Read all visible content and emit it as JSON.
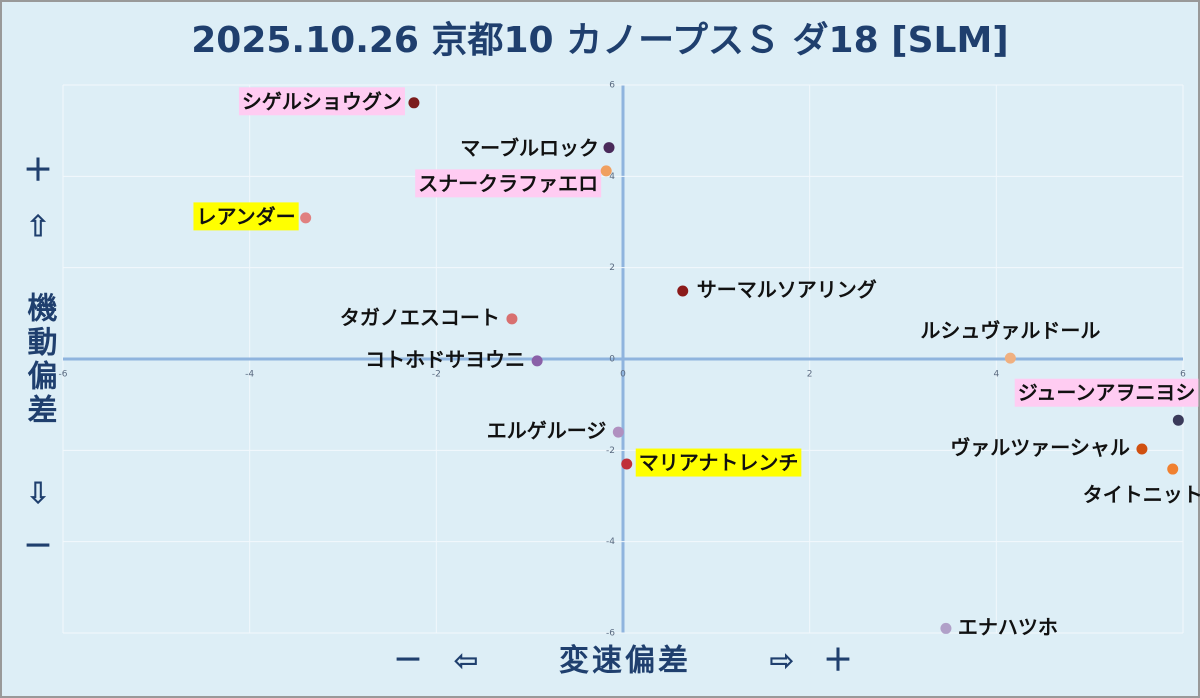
{
  "chart_data": {
    "type": "scatter",
    "title": "2025.10.26 京都10 カノープスＳ ダ18 [SLM]",
    "xlabel": "変速偏差",
    "ylabel": "機動偏差",
    "x_minus_sign": "－",
    "x_left_arrow": "⇦",
    "x_right_arrow": "⇨",
    "x_plus_sign": "＋",
    "y_plus_sign": "＋",
    "y_up_arrow": "⇧",
    "y_down_arrow": "⇩",
    "y_minus_sign": "－",
    "labels": [
      "シゲルショウグン",
      "マーブルロック",
      "スナークラファエロ",
      "レアンダー",
      "サーマルソアリング",
      "タガノエスコート",
      "ルシュヴァルドール",
      "コトホドサヨウニ",
      "ジューンアヲニヨシ",
      "エルゲルージ",
      "ヴァルツァーシャル",
      "マリアナトレンチ",
      "タイトニット",
      "エナハツホ"
    ],
    "x": [
      -2.24,
      -0.15,
      -0.18,
      -3.4,
      0.64,
      -1.19,
      4.15,
      -0.92,
      5.95,
      -0.05,
      5.56,
      0.04,
      5.89,
      3.46
    ],
    "values": [
      5.61,
      4.63,
      4.12,
      3.09,
      1.49,
      0.88,
      0.02,
      -0.04,
      -1.34,
      -1.6,
      -1.97,
      -2.3,
      -2.41,
      -5.9
    ],
    "colors": [
      "#7b1c1c",
      "#4a2a5a",
      "#f0a060",
      "#e08080",
      "#8b1a1a",
      "#d87070",
      "#f0b080",
      "#8a60a8",
      "#3a3a5a",
      "#b090c0",
      "#d05010",
      "#c0303a",
      "#f08030",
      "#b0a0c8"
    ],
    "label_backgrounds": [
      "#ffccf2",
      null,
      "#ffccf2",
      "#ffff00",
      null,
      null,
      null,
      null,
      "#ffccf2",
      null,
      null,
      "#ffff00",
      null,
      null
    ],
    "xlim": [
      -6,
      6
    ],
    "ylim": [
      -6,
      6
    ],
    "xticks": [
      -6,
      -4,
      -2,
      0,
      2,
      4,
      6
    ],
    "yticks": [
      -6,
      -4,
      -2,
      0,
      2,
      4,
      6
    ],
    "grid": true
  }
}
